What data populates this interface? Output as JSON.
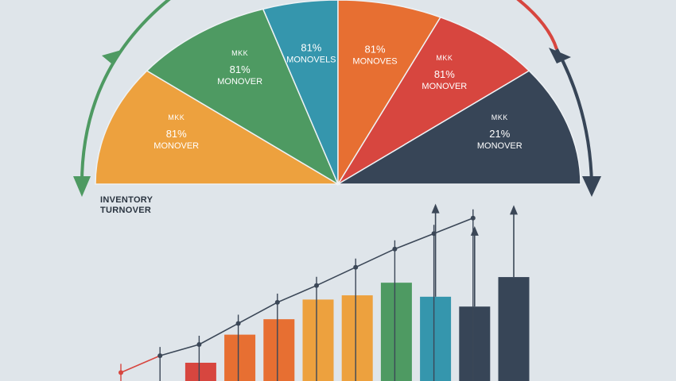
{
  "colors": {
    "background": "#dfe5ea",
    "yellow": "#eda13e",
    "green": "#4e9a62",
    "teal": "#3596ad",
    "orange": "#e76f32",
    "red": "#d7463f",
    "navy": "#374557",
    "line": "#3b4757",
    "arrow_green": "#4e9a62",
    "arrow_red": "#d7463f",
    "arrow_navy": "#374557"
  },
  "title": {
    "line1": "INVENTORY",
    "line2": "TURNOVER"
  },
  "chart_data": [
    {
      "type": "pie",
      "subtype": "semicircle",
      "segments": [
        {
          "tag": "MKK",
          "value_text": "81%",
          "label": "MONOVER",
          "color": "#eda13e"
        },
        {
          "tag": "MKK",
          "value_text": "81%",
          "label": "MONOVER",
          "color": "#4e9a62"
        },
        {
          "tag": "",
          "value_text": "81%",
          "label": "MONOVELS",
          "color": "#3596ad"
        },
        {
          "tag": "",
          "value_text": "81%",
          "label": "MONOVES",
          "color": "#e76f32"
        },
        {
          "tag": "MKK",
          "value_text": "81%",
          "label": "MONOVER",
          "color": "#d7463f"
        },
        {
          "tag": "MKK",
          "value_text": "21%",
          "label": "MONOVER",
          "color": "#374557"
        }
      ]
    },
    {
      "type": "bar",
      "series": [
        {
          "values": [
            0,
            0,
            1.3,
            3.3,
            4.4,
            5.8,
            6.1,
            7.0,
            6.0,
            5.3,
            7.4
          ],
          "colors": [
            "",
            "",
            "#d7463f",
            "#e76f32",
            "#e76f32",
            "#eda13e",
            "#eda13e",
            "#4e9a62",
            "#3596ad",
            "#374557",
            "#374557"
          ]
        }
      ],
      "line_values": [
        0.6,
        1.8,
        2.6,
        4.1,
        5.6,
        6.8,
        8.1,
        9.4,
        10.5,
        11.6
      ],
      "arrow_tips": [
        null,
        null,
        null,
        null,
        null,
        null,
        null,
        null,
        12.4,
        10.8,
        12.3
      ],
      "ylim": [
        0,
        13
      ]
    }
  ]
}
